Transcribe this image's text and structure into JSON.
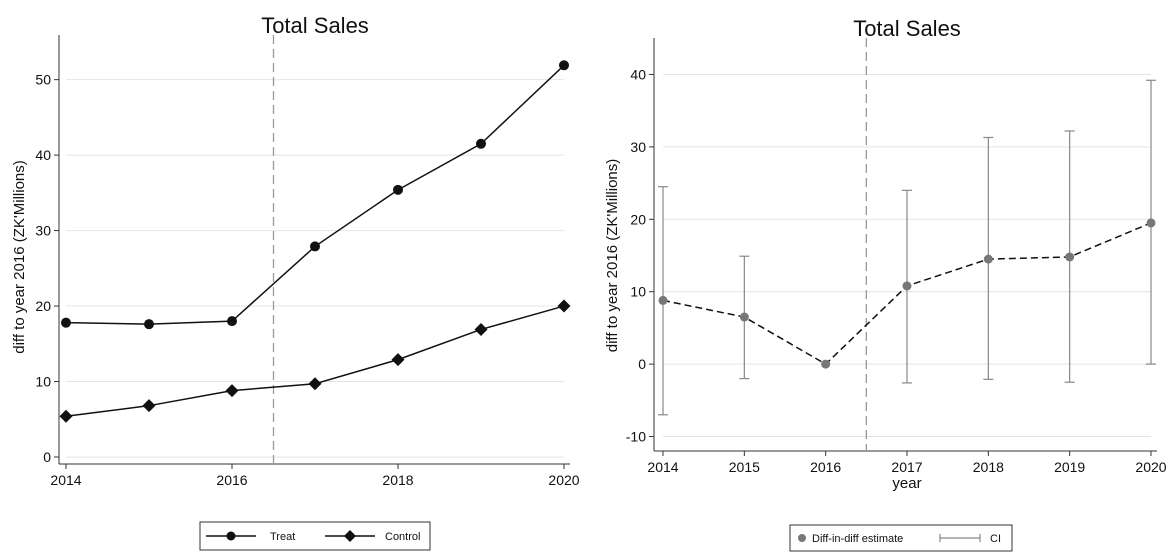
{
  "chart_data": [
    {
      "type": "line",
      "title": "Total Sales",
      "xlabel": "",
      "ylabel": "diff to year 2016 (ZK'Millions)",
      "x": [
        2014,
        2015,
        2016,
        2017,
        2018,
        2019,
        2020
      ],
      "x_ticks": [
        2014,
        2016,
        2018,
        2020
      ],
      "y_ticks": [
        0,
        10,
        20,
        30,
        40,
        50
      ],
      "xlim": [
        2014,
        2020
      ],
      "ylim": [
        0,
        53
      ],
      "grid": true,
      "reference_line_x": 2016.5,
      "legend_position": "bottom",
      "series": [
        {
          "name": "Treat",
          "marker": "circle",
          "values": [
            17.8,
            17.6,
            18.0,
            27.9,
            35.4,
            41.5,
            51.9
          ]
        },
        {
          "name": "Control",
          "marker": "diamond",
          "values": [
            5.4,
            6.8,
            8.8,
            9.7,
            12.9,
            16.9,
            20.0
          ]
        }
      ]
    },
    {
      "type": "line",
      "title": "Total Sales",
      "xlabel": "year",
      "ylabel": "diff to year 2016 (ZK'Millions)",
      "x": [
        2014,
        2015,
        2016,
        2017,
        2018,
        2019,
        2020
      ],
      "x_ticks": [
        2014,
        2015,
        2016,
        2017,
        2018,
        2019,
        2020
      ],
      "y_ticks": [
        -10,
        0,
        10,
        20,
        30,
        40
      ],
      "xlim": [
        2014,
        2020
      ],
      "ylim": [
        -12,
        42
      ],
      "grid": true,
      "reference_line_x": 2016.5,
      "legend_position": "bottom",
      "series": [
        {
          "name": "Diff-in-diff estimate",
          "marker": "circle",
          "line": "dashed",
          "values": [
            8.8,
            6.5,
            0,
            10.8,
            14.5,
            14.8,
            19.5
          ]
        },
        {
          "name": "CI",
          "type": "errorbar",
          "lower": [
            -7.0,
            -2.0,
            0,
            -2.6,
            -2.1,
            -2.5,
            0.0
          ],
          "upper": [
            24.5,
            14.9,
            0,
            24.0,
            31.3,
            32.2,
            39.2
          ]
        }
      ]
    }
  ]
}
